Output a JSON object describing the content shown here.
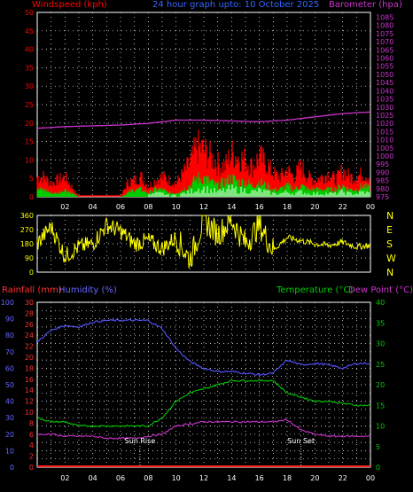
{
  "header": {
    "left_label": "Windspeed (kph)",
    "center_label": "24 hour graph upto: 10 October 2025",
    "right_label": "Barometer (hpa)"
  },
  "colors": {
    "background": "#000000",
    "grid": "#ffffff",
    "red": "#ff0000",
    "green": "#00cc00",
    "white": "#ffffff",
    "magenta": "#cc33cc",
    "yellow": "#ffff00",
    "blue": "#5555ff",
    "temp_green": "#00cc00",
    "rainfall": "#ff2020"
  },
  "x_ticks": [
    "02",
    "04",
    "06",
    "08",
    "10",
    "12",
    "14",
    "16",
    "18",
    "20",
    "22",
    "00"
  ],
  "bottom_labels": {
    "rainfall": "Rainfall (mm)",
    "humidity": "Humidity (%)",
    "temperature": "Temperature (°C)",
    "dewpoint": "Dew Point (°C)",
    "sunrise": "Sun Rise",
    "sunset": "Sun Set"
  },
  "chart_data": [
    {
      "type": "area",
      "name": "wind_barometer",
      "y_left": {
        "label": "Windspeed (kph)",
        "ticks": [
          0,
          5,
          10,
          15,
          20,
          25,
          30,
          35,
          40,
          45,
          50
        ],
        "range": [
          0,
          50
        ]
      },
      "y_right": {
        "label": "Barometer (hpa)",
        "ticks": [
          975,
          980,
          985,
          990,
          995,
          1000,
          1005,
          1010,
          1015,
          1020,
          1025,
          1030,
          1035,
          1040,
          1045,
          1050,
          1055,
          1060,
          1065,
          1070,
          1075,
          1080,
          1085
        ],
        "range": [
          975,
          1088
        ]
      },
      "series": [
        {
          "name": "gust",
          "x": [
            0.5,
            1,
            1.5,
            2,
            2.5,
            3,
            3.5,
            4,
            5,
            6,
            6.5,
            7,
            7.5,
            8,
            8.5,
            9,
            9.5,
            10,
            10.5,
            11,
            11.5,
            12,
            12.5,
            13,
            13.5,
            14,
            14.5,
            15,
            15.5,
            16,
            16.5,
            17,
            17.5,
            18,
            18.5,
            19,
            19.5,
            20,
            20.5,
            21,
            21.5,
            22,
            22.5,
            23,
            23.5,
            24
          ],
          "values": [
            6,
            4,
            5,
            6,
            3,
            0,
            0,
            0,
            0,
            0,
            4,
            5,
            6,
            3,
            5,
            6,
            5,
            4,
            7,
            10,
            15,
            14,
            12,
            10,
            9,
            13,
            12,
            11,
            9,
            12,
            10,
            7,
            6,
            8,
            6,
            9,
            6,
            5,
            6,
            7,
            5,
            8,
            6,
            6,
            7,
            6
          ]
        },
        {
          "name": "average",
          "x": [
            0.5,
            1,
            1.5,
            2,
            2.5,
            3,
            3.5,
            4,
            5,
            6,
            6.5,
            7,
            7.5,
            8,
            8.5,
            9,
            9.5,
            10,
            10.5,
            11,
            11.5,
            12,
            12.5,
            13,
            13.5,
            14,
            14.5,
            15,
            15.5,
            16,
            16.5,
            17,
            17.5,
            18,
            18.5,
            19,
            19.5,
            20,
            20.5,
            21,
            21.5,
            22,
            22.5,
            23,
            23.5,
            24
          ],
          "values": [
            2,
            1,
            1,
            2,
            1,
            0,
            0,
            0,
            0,
            0,
            1,
            2,
            2,
            1,
            2,
            2,
            1,
            1,
            2,
            3,
            5,
            5,
            4,
            3,
            4,
            5,
            4,
            4,
            3,
            4,
            3,
            2,
            2,
            3,
            2,
            3,
            2,
            2,
            2,
            2,
            2,
            3,
            2,
            2,
            3,
            2
          ]
        },
        {
          "name": "barometer",
          "x": [
            0,
            2,
            4,
            6,
            8,
            10,
            12,
            14,
            16,
            18,
            20,
            22,
            24
          ],
          "values": [
            1017,
            1018,
            1018.5,
            1019,
            1020,
            1022,
            1022,
            1021.5,
            1021,
            1022,
            1024,
            1026,
            1027
          ]
        }
      ]
    },
    {
      "type": "line",
      "name": "wind_direction",
      "y_left": {
        "ticks": [
          0,
          90,
          180,
          270,
          360
        ],
        "range": [
          0,
          360
        ]
      },
      "y_right": {
        "ticks": [
          "N",
          "W",
          "S",
          "E",
          "N"
        ]
      },
      "series": [
        {
          "name": "direction",
          "x": [
            0,
            1,
            2,
            3,
            4,
            5,
            6,
            7,
            8,
            9,
            10,
            11,
            12,
            13,
            14,
            15,
            16,
            17,
            18,
            19,
            20,
            21,
            22,
            23,
            24
          ],
          "values": [
            180,
            290,
            100,
            160,
            180,
            300,
            260,
            180,
            200,
            150,
            220,
            80,
            330,
            240,
            330,
            180,
            300,
            140,
            220,
            200,
            180,
            170,
            190,
            160,
            170
          ]
        }
      ]
    },
    {
      "type": "line",
      "name": "temperature_humidity",
      "y_rain": {
        "label": "Rainfall (mm)",
        "ticks": [
          0,
          2,
          4,
          6,
          8,
          10,
          12,
          14,
          16,
          18,
          20,
          22,
          24,
          26,
          28,
          30
        ],
        "range": [
          0,
          30
        ]
      },
      "y_humidity": {
        "label": "Humidity (%)",
        "ticks": [
          0,
          10,
          20,
          30,
          40,
          50,
          60,
          70,
          80,
          90,
          100
        ],
        "range": [
          0,
          100
        ]
      },
      "y_temp": {
        "label": "Temperature (°C)",
        "ticks": [
          0,
          5,
          10,
          15,
          20,
          25,
          30,
          35,
          40
        ],
        "range": [
          0,
          40
        ]
      },
      "series": [
        {
          "name": "humidity",
          "x": [
            0,
            1,
            2,
            3,
            4,
            5,
            6,
            7,
            8,
            9,
            10,
            11,
            12,
            13,
            14,
            15,
            16,
            17,
            18,
            19,
            20,
            21,
            22,
            23,
            24
          ],
          "values": [
            76,
            83,
            86,
            85,
            88,
            89,
            89,
            89,
            89,
            84,
            72,
            64,
            60,
            58,
            58,
            57,
            56,
            57,
            65,
            62,
            63,
            62,
            60,
            63,
            63
          ]
        },
        {
          "name": "temperature",
          "x": [
            0,
            1,
            2,
            3,
            4,
            5,
            6,
            7,
            8,
            9,
            10,
            11,
            12,
            13,
            14,
            15,
            16,
            17,
            18,
            19,
            20,
            21,
            22,
            23,
            24
          ],
          "values": [
            12,
            11,
            11,
            10,
            10,
            10,
            10,
            10,
            10,
            12,
            16,
            18,
            19,
            20,
            21,
            21,
            21,
            21,
            18,
            17,
            16,
            16,
            15.5,
            15,
            15
          ]
        },
        {
          "name": "dewpoint",
          "x": [
            0,
            1,
            2,
            3,
            4,
            5,
            6,
            7,
            8,
            9,
            10,
            11,
            12,
            13,
            14,
            15,
            16,
            17,
            18,
            19,
            20,
            21,
            22,
            23,
            24
          ],
          "values": [
            8,
            8,
            7.5,
            7.5,
            7.5,
            7,
            7,
            7,
            7.5,
            8,
            10,
            10.5,
            11,
            11,
            11,
            11,
            11,
            11,
            11.5,
            9,
            8,
            7.5,
            7.5,
            7.5,
            7.5
          ]
        },
        {
          "name": "rainfall",
          "x": [
            0,
            24
          ],
          "values": [
            0,
            0
          ]
        }
      ],
      "sunrise_hour": 7.4,
      "sunset_hour": 19.0
    }
  ]
}
